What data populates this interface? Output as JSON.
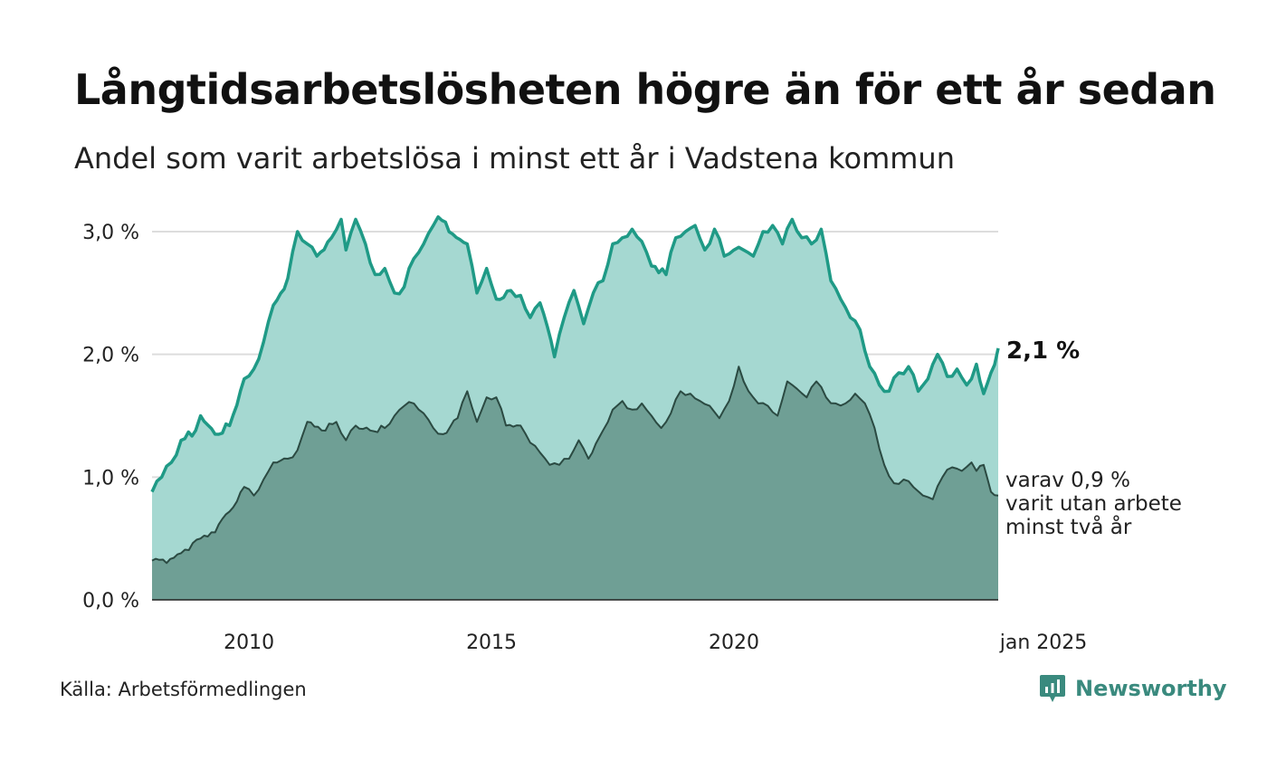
{
  "title": "Långtidsarbetslösheten högre än för ett år sedan",
  "subtitle": "Andel som varit arbetslösa i minst ett år i Vadstena kommun",
  "source": "Källa: Arbetsförmedlingen",
  "brand": "Newsworthy",
  "colors": {
    "upper_line": "#1f9a86",
    "upper_fill": "#a5d8d1",
    "lower_line": "#2b4a42",
    "lower_fill": "#6f9f95",
    "grid": "#dddddd",
    "brand": "#3a8a7e"
  },
  "chart_data": {
    "type": "area",
    "title": "Långtidsarbetslösheten högre än för ett år sedan",
    "x_start": "2008-01",
    "x_end": "2025-01",
    "x_tick_labels": [
      {
        "year": 2010,
        "label": "2010"
      },
      {
        "year": 2015,
        "label": "2015"
      },
      {
        "year": 2020,
        "label": "2020"
      },
      {
        "year": 2025,
        "label": "jan 2025"
      }
    ],
    "y_tick_labels": [
      {
        "value": 0,
        "label": "0,0 %"
      },
      {
        "value": 1,
        "label": "1,0 %"
      },
      {
        "value": 2,
        "label": "2,0 %"
      },
      {
        "value": 3,
        "label": "3,0 %"
      }
    ],
    "ylim": [
      0,
      3.2
    ],
    "series": [
      {
        "name": "Arbetslösa minst ett år",
        "end_label": "2,1 %",
        "anchors": [
          [
            2008.0,
            0.88
          ],
          [
            2008.2,
            1.0
          ],
          [
            2008.4,
            1.12
          ],
          [
            2008.6,
            1.3
          ],
          [
            2008.9,
            1.38
          ],
          [
            2009.0,
            1.5
          ],
          [
            2009.3,
            1.35
          ],
          [
            2009.6,
            1.42
          ],
          [
            2009.9,
            1.8
          ],
          [
            2010.1,
            1.88
          ],
          [
            2010.3,
            2.1
          ],
          [
            2010.5,
            2.4
          ],
          [
            2010.8,
            2.62
          ],
          [
            2011.0,
            3.0
          ],
          [
            2011.2,
            2.9
          ],
          [
            2011.4,
            2.8
          ],
          [
            2011.7,
            2.95
          ],
          [
            2011.9,
            3.1
          ],
          [
            2012.0,
            2.85
          ],
          [
            2012.2,
            3.1
          ],
          [
            2012.4,
            2.9
          ],
          [
            2012.6,
            2.65
          ],
          [
            2012.8,
            2.7
          ],
          [
            2013.0,
            2.5
          ],
          [
            2013.2,
            2.55
          ],
          [
            2013.4,
            2.78
          ],
          [
            2013.6,
            2.9
          ],
          [
            2013.8,
            3.05
          ],
          [
            2013.9,
            3.12
          ],
          [
            2014.2,
            2.98
          ],
          [
            2014.5,
            2.9
          ],
          [
            2014.7,
            2.5
          ],
          [
            2014.9,
            2.7
          ],
          [
            2015.1,
            2.45
          ],
          [
            2015.4,
            2.52
          ],
          [
            2015.6,
            2.48
          ],
          [
            2015.8,
            2.3
          ],
          [
            2016.0,
            2.42
          ],
          [
            2016.3,
            1.98
          ],
          [
            2016.5,
            2.3
          ],
          [
            2016.7,
            2.52
          ],
          [
            2016.9,
            2.25
          ],
          [
            2017.1,
            2.5
          ],
          [
            2017.3,
            2.6
          ],
          [
            2017.5,
            2.9
          ],
          [
            2017.7,
            2.95
          ],
          [
            2017.9,
            3.02
          ],
          [
            2018.1,
            2.92
          ],
          [
            2018.3,
            2.72
          ],
          [
            2018.6,
            2.65
          ],
          [
            2018.8,
            2.95
          ],
          [
            2019.0,
            3.0
          ],
          [
            2019.2,
            3.05
          ],
          [
            2019.4,
            2.85
          ],
          [
            2019.6,
            3.02
          ],
          [
            2019.8,
            2.8
          ],
          [
            2020.0,
            2.85
          ],
          [
            2020.2,
            2.85
          ],
          [
            2020.4,
            2.8
          ],
          [
            2020.6,
            3.0
          ],
          [
            2020.8,
            3.05
          ],
          [
            2021.0,
            2.9
          ],
          [
            2021.2,
            3.1
          ],
          [
            2021.4,
            2.95
          ],
          [
            2021.6,
            2.9
          ],
          [
            2021.8,
            3.02
          ],
          [
            2022.0,
            2.6
          ],
          [
            2022.2,
            2.45
          ],
          [
            2022.4,
            2.3
          ],
          [
            2022.6,
            2.2
          ],
          [
            2022.8,
            1.9
          ],
          [
            2023.0,
            1.75
          ],
          [
            2023.2,
            1.7
          ],
          [
            2023.4,
            1.85
          ],
          [
            2023.6,
            1.9
          ],
          [
            2023.8,
            1.7
          ],
          [
            2024.0,
            1.8
          ],
          [
            2024.2,
            2.0
          ],
          [
            2024.4,
            1.82
          ],
          [
            2024.6,
            1.88
          ],
          [
            2024.8,
            1.75
          ],
          [
            2025.0,
            1.92
          ],
          [
            2025.15,
            1.68
          ],
          [
            2025.3,
            1.85
          ],
          [
            2025.45,
            2.05
          ]
        ]
      },
      {
        "name": "Arbetslösa minst två år",
        "end_label_lines": [
          "varav 0,9 %",
          "varit utan arbete",
          "minst två år"
        ],
        "anchors": [
          [
            2008.0,
            0.32
          ],
          [
            2008.3,
            0.3
          ],
          [
            2008.6,
            0.38
          ],
          [
            2009.0,
            0.5
          ],
          [
            2009.3,
            0.55
          ],
          [
            2009.6,
            0.72
          ],
          [
            2009.9,
            0.92
          ],
          [
            2010.1,
            0.85
          ],
          [
            2010.3,
            0.98
          ],
          [
            2010.5,
            1.12
          ],
          [
            2010.8,
            1.15
          ],
          [
            2011.0,
            1.22
          ],
          [
            2011.2,
            1.45
          ],
          [
            2011.5,
            1.38
          ],
          [
            2011.8,
            1.45
          ],
          [
            2012.0,
            1.3
          ],
          [
            2012.2,
            1.42
          ],
          [
            2012.5,
            1.38
          ],
          [
            2012.8,
            1.4
          ],
          [
            2013.0,
            1.5
          ],
          [
            2013.2,
            1.58
          ],
          [
            2013.4,
            1.6
          ],
          [
            2013.6,
            1.52
          ],
          [
            2013.8,
            1.4
          ],
          [
            2014.0,
            1.35
          ],
          [
            2014.3,
            1.48
          ],
          [
            2014.5,
            1.7
          ],
          [
            2014.7,
            1.45
          ],
          [
            2014.9,
            1.65
          ],
          [
            2015.1,
            1.65
          ],
          [
            2015.3,
            1.42
          ],
          [
            2015.6,
            1.42
          ],
          [
            2015.8,
            1.28
          ],
          [
            2016.0,
            1.2
          ],
          [
            2016.2,
            1.1
          ],
          [
            2016.4,
            1.1
          ],
          [
            2016.6,
            1.15
          ],
          [
            2016.8,
            1.3
          ],
          [
            2017.0,
            1.15
          ],
          [
            2017.3,
            1.38
          ],
          [
            2017.5,
            1.55
          ],
          [
            2017.7,
            1.62
          ],
          [
            2017.9,
            1.55
          ],
          [
            2018.1,
            1.6
          ],
          [
            2018.3,
            1.5
          ],
          [
            2018.5,
            1.4
          ],
          [
            2018.7,
            1.52
          ],
          [
            2018.9,
            1.7
          ],
          [
            2019.1,
            1.68
          ],
          [
            2019.3,
            1.62
          ],
          [
            2019.5,
            1.58
          ],
          [
            2019.7,
            1.48
          ],
          [
            2019.9,
            1.62
          ],
          [
            2020.1,
            1.9
          ],
          [
            2020.3,
            1.7
          ],
          [
            2020.5,
            1.6
          ],
          [
            2020.7,
            1.58
          ],
          [
            2020.9,
            1.5
          ],
          [
            2021.1,
            1.78
          ],
          [
            2021.3,
            1.72
          ],
          [
            2021.5,
            1.65
          ],
          [
            2021.7,
            1.78
          ],
          [
            2021.9,
            1.65
          ],
          [
            2022.1,
            1.6
          ],
          [
            2022.3,
            1.6
          ],
          [
            2022.5,
            1.68
          ],
          [
            2022.7,
            1.6
          ],
          [
            2022.9,
            1.4
          ],
          [
            2023.1,
            1.1
          ],
          [
            2023.3,
            0.95
          ],
          [
            2023.5,
            0.98
          ],
          [
            2023.7,
            0.92
          ],
          [
            2023.9,
            0.85
          ],
          [
            2024.1,
            0.82
          ],
          [
            2024.3,
            1.0
          ],
          [
            2024.5,
            1.08
          ],
          [
            2024.7,
            1.05
          ],
          [
            2024.9,
            1.12
          ],
          [
            2025.0,
            1.05
          ],
          [
            2025.15,
            1.1
          ],
          [
            2025.3,
            0.88
          ],
          [
            2025.45,
            0.85
          ]
        ]
      }
    ]
  }
}
